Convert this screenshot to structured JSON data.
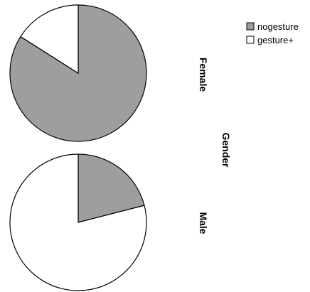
{
  "chart_data": {
    "type": "pie",
    "facet_title": "Gender",
    "categories": [
      "nogesture",
      "gesture+"
    ],
    "colors": {
      "nogesture": "#9e9e9e",
      "gesture+": "#ffffff",
      "outline": "#000000"
    },
    "legend": {
      "position": "top-right",
      "entries": [
        "nogesture",
        "gesture+"
      ]
    },
    "panels": [
      {
        "label": "Female",
        "values": [
          0.84,
          0.16
        ]
      },
      {
        "label": "Male",
        "values": [
          0.21,
          0.79
        ]
      }
    ]
  }
}
